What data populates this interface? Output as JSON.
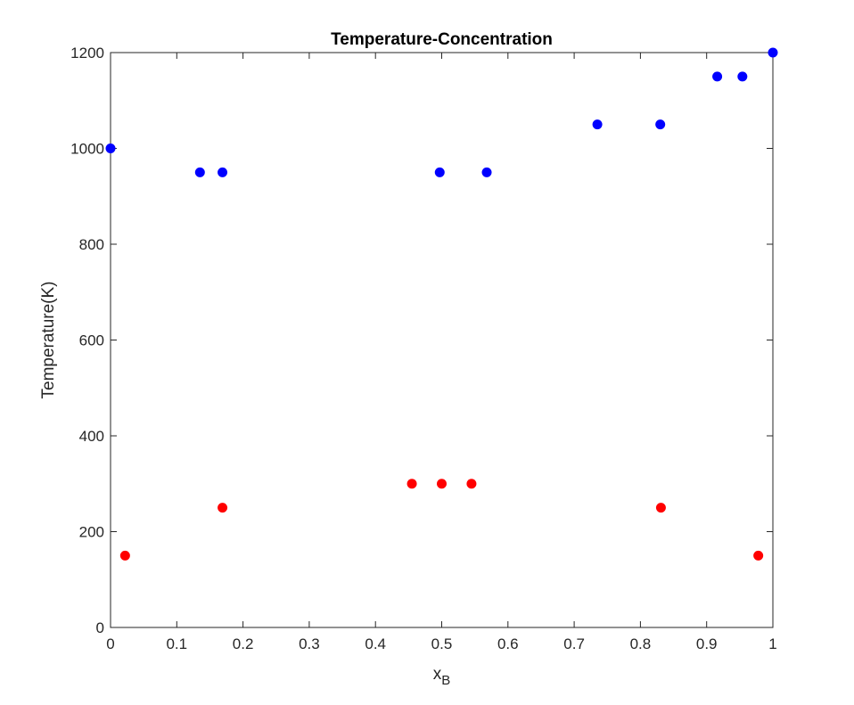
{
  "chart_data": {
    "type": "scatter",
    "title": "Temperature-Concentration",
    "xlabel_main": "x",
    "xlabel_sub": "B",
    "ylabel": "Temperature(K)",
    "xlim": [
      0,
      1
    ],
    "ylim": [
      0,
      1200
    ],
    "xticks": [
      "0",
      "0.1",
      "0.2",
      "0.3",
      "0.4",
      "0.5",
      "0.6",
      "0.7",
      "0.8",
      "0.9",
      "1"
    ],
    "yticks": [
      "0",
      "200",
      "400",
      "600",
      "800",
      "1000",
      "1200"
    ],
    "grid": false,
    "series": [
      {
        "color": "#0000ff",
        "points": [
          [
            0.0,
            1000
          ],
          [
            0.135,
            950
          ],
          [
            0.169,
            950
          ],
          [
            0.497,
            950
          ],
          [
            0.568,
            950
          ],
          [
            0.735,
            1050
          ],
          [
            0.83,
            1050
          ],
          [
            0.916,
            1150
          ],
          [
            0.954,
            1150
          ],
          [
            1.0,
            1200
          ]
        ]
      },
      {
        "color": "#ff0000",
        "points": [
          [
            0.022,
            150
          ],
          [
            0.169,
            250
          ],
          [
            0.455,
            300
          ],
          [
            0.5,
            300
          ],
          [
            0.545,
            300
          ],
          [
            0.831,
            250
          ],
          [
            0.978,
            150
          ]
        ]
      }
    ]
  }
}
